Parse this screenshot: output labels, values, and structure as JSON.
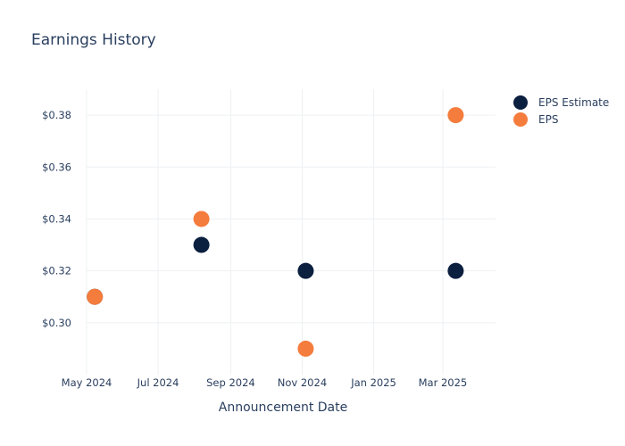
{
  "chart_data": {
    "type": "scatter",
    "title": "Earnings History",
    "xlabel": "Announcement Date",
    "ylabel": "",
    "x_tick_labels": [
      "May 2024",
      "Jul 2024",
      "Sep 2024",
      "Nov 2024",
      "Jan 2025",
      "Mar 2025"
    ],
    "x_tick_dates": [
      "2024-05-01",
      "2024-07-01",
      "2024-09-01",
      "2024-11-01",
      "2025-01-01",
      "2025-03-01"
    ],
    "xlim": [
      "2024-05-01",
      "2025-04-15"
    ],
    "y_tick_labels": [
      "$0.30",
      "$0.32",
      "$0.34",
      "$0.36",
      "$0.38"
    ],
    "y_ticks": [
      0.3,
      0.32,
      0.34,
      0.36,
      0.38
    ],
    "ylim": [
      0.28,
      0.39
    ],
    "grid": true,
    "legend_position": "top-right",
    "series": [
      {
        "name": "EPS Estimate",
        "color": "#0b1f3f",
        "points": [
          {
            "x": "2024-05-08",
            "y": 0.31
          },
          {
            "x": "2024-08-07",
            "y": 0.33
          },
          {
            "x": "2024-11-04",
            "y": 0.32
          },
          {
            "x": "2025-03-12",
            "y": 0.32
          }
        ]
      },
      {
        "name": "EPS",
        "color": "#f47c3c",
        "points": [
          {
            "x": "2024-05-08",
            "y": 0.31
          },
          {
            "x": "2024-08-07",
            "y": 0.34
          },
          {
            "x": "2024-11-04",
            "y": 0.29
          },
          {
            "x": "2025-03-12",
            "y": 0.38
          }
        ]
      }
    ]
  }
}
